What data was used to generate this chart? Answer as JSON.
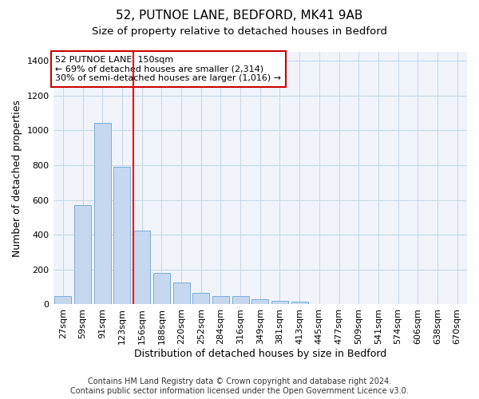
{
  "title1": "52, PUTNOE LANE, BEDFORD, MK41 9AB",
  "title2": "Size of property relative to detached houses in Bedford",
  "xlabel": "Distribution of detached houses by size in Bedford",
  "ylabel": "Number of detached properties",
  "categories": [
    "27sqm",
    "59sqm",
    "91sqm",
    "123sqm",
    "156sqm",
    "188sqm",
    "220sqm",
    "252sqm",
    "284sqm",
    "316sqm",
    "349sqm",
    "381sqm",
    "413sqm",
    "445sqm",
    "477sqm",
    "509sqm",
    "541sqm",
    "574sqm",
    "606sqm",
    "638sqm",
    "670sqm"
  ],
  "values": [
    48,
    570,
    1040,
    790,
    425,
    180,
    125,
    65,
    50,
    50,
    28,
    22,
    15,
    0,
    0,
    0,
    0,
    0,
    0,
    0,
    0
  ],
  "bar_color": "#c5d8f0",
  "bar_edge_color": "#7aadd4",
  "red_line_index": 4,
  "annotation_text": "52 PUTNOE LANE: 150sqm\n← 69% of detached houses are smaller (2,314)\n30% of semi-detached houses are larger (1,016) →",
  "annotation_box_color": "#ffffff",
  "annotation_box_edge_color": "#cc0000",
  "ylim": [
    0,
    1450
  ],
  "yticks": [
    0,
    200,
    400,
    600,
    800,
    1000,
    1200,
    1400
  ],
  "grid_color": "#c8d8e8",
  "bg_color": "#ffffff",
  "plot_bg_color": "#f0f4fa",
  "footer1": "Contains HM Land Registry data © Crown copyright and database right 2024.",
  "footer2": "Contains public sector information licensed under the Open Government Licence v3.0.",
  "title1_fontsize": 11,
  "title2_fontsize": 9.5,
  "axis_label_fontsize": 9,
  "tick_fontsize": 8,
  "annotation_fontsize": 8,
  "footer_fontsize": 7
}
